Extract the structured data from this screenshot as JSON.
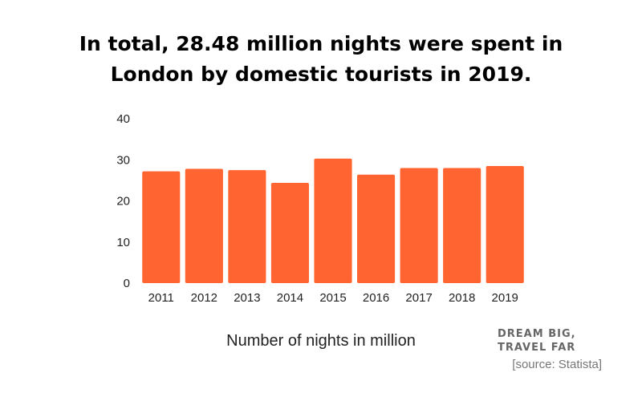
{
  "title_lines": [
    "In total, 28.48 million nights were spent in",
    "London by domestic tourists in 2019."
  ],
  "chart_data": {
    "type": "bar",
    "categories": [
      "2011",
      "2012",
      "2013",
      "2014",
      "2015",
      "2016",
      "2017",
      "2018",
      "2019"
    ],
    "values": [
      27.2,
      27.8,
      27.5,
      24.4,
      30.3,
      26.4,
      28.0,
      28.0,
      28.48
    ],
    "yticks": [
      0,
      10,
      20,
      30,
      40
    ],
    "ylim": [
      0,
      40
    ],
    "xlabel": "Number of nights in million",
    "ylabel": "",
    "grid": false,
    "bar_color": "#ff6431"
  },
  "branding": {
    "line1": "DREAM BIG,",
    "line2": "TRAVEL FAR"
  },
  "source": "[source: Statista]"
}
